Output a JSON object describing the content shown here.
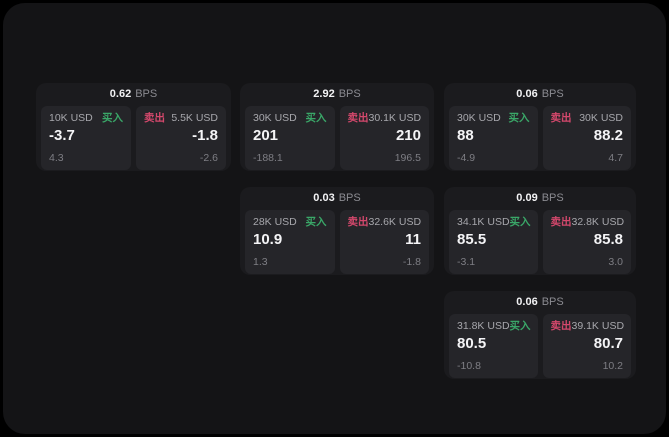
{
  "page": {
    "bg_outer": "#000000",
    "bg_inner": "#141416",
    "card_bg": "#1b1b1e",
    "panel_bg": "#252529",
    "buy_color": "#3aa768",
    "sell_color": "#d4486c"
  },
  "labels": {
    "bps": "BPS",
    "buy": "买入",
    "sell": "卖出"
  },
  "cards": [
    {
      "row": 0,
      "col": 0,
      "bps": "0.62",
      "buy": {
        "amount": "10K USD",
        "value": "-3.7",
        "sub": "4.3"
      },
      "sell": {
        "amount": "5.5K USD",
        "value": "-1.8",
        "sub": "-2.6"
      }
    },
    {
      "row": 0,
      "col": 1,
      "bps": "2.92",
      "buy": {
        "amount": "30K USD",
        "value": "201",
        "sub": "-188.1"
      },
      "sell": {
        "amount": "30.1K USD",
        "value": "210",
        "sub": "196.5"
      }
    },
    {
      "row": 0,
      "col": 2,
      "bps": "0.06",
      "buy": {
        "amount": "30K USD",
        "value": "88",
        "sub": "-4.9"
      },
      "sell": {
        "amount": "30K USD",
        "value": "88.2",
        "sub": "4.7"
      }
    },
    {
      "row": 1,
      "col": 1,
      "bps": "0.03",
      "buy": {
        "amount": "28K USD",
        "value": "10.9",
        "sub": "1.3"
      },
      "sell": {
        "amount": "32.6K USD",
        "value": "11",
        "sub": "-1.8"
      }
    },
    {
      "row": 1,
      "col": 2,
      "bps": "0.09",
      "buy": {
        "amount": "34.1K USD",
        "value": "85.5",
        "sub": "-3.1"
      },
      "sell": {
        "amount": "32.8K USD",
        "value": "85.8",
        "sub": "3.0"
      }
    },
    {
      "row": 2,
      "col": 2,
      "bps": "0.06",
      "buy": {
        "amount": "31.8K USD",
        "value": "80.5",
        "sub": "-10.8"
      },
      "sell": {
        "amount": "39.1K USD",
        "value": "80.7",
        "sub": "10.2"
      }
    }
  ]
}
